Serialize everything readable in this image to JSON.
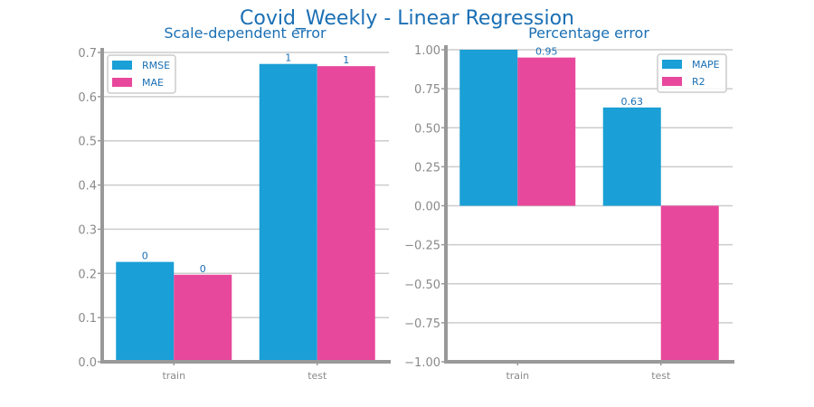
{
  "suptitle": "Covid_Weekly - Linear Regression",
  "colors": {
    "series1": "#1a9fd6",
    "series2": "#e8489b"
  },
  "chart_data": [
    {
      "type": "bar",
      "title": "Scale-dependent error",
      "categories": [
        "train",
        "test"
      ],
      "series": [
        {
          "name": "RMSE",
          "values": [
            0.226,
            0.674
          ],
          "labels": [
            "0",
            "1"
          ]
        },
        {
          "name": "MAE",
          "values": [
            0.197,
            0.669
          ],
          "labels": [
            "0",
            "1"
          ]
        }
      ],
      "ylim": [
        0,
        0.7
      ],
      "yticks": [
        0.0,
        0.1,
        0.2,
        0.3,
        0.4,
        0.5,
        0.6,
        0.7
      ],
      "ytick_labels": [
        "0.0",
        "0.1",
        "0.2",
        "0.3",
        "0.4",
        "0.5",
        "0.6",
        "0.7"
      ],
      "legend": "top-left",
      "grid": true
    },
    {
      "type": "bar",
      "title": "Percentage error",
      "categories": [
        "train",
        "test"
      ],
      "series": [
        {
          "name": "MAPE",
          "values": [
            1.0,
            0.63
          ],
          "labels": [
            "",
            "0.63"
          ]
        },
        {
          "name": "R2",
          "values": [
            0.95,
            -1.0
          ],
          "labels": [
            "0.95",
            ""
          ]
        }
      ],
      "ylim": [
        -1.0,
        1.0
      ],
      "yticks": [
        -1.0,
        -0.75,
        -0.5,
        -0.25,
        0.0,
        0.25,
        0.5,
        0.75,
        1.0
      ],
      "ytick_labels": [
        "−1.00",
        "−0.75",
        "−0.50",
        "−0.25",
        "0.00",
        "0.25",
        "0.50",
        "0.75",
        "1.00"
      ],
      "legend": "top-right",
      "grid": true
    }
  ]
}
